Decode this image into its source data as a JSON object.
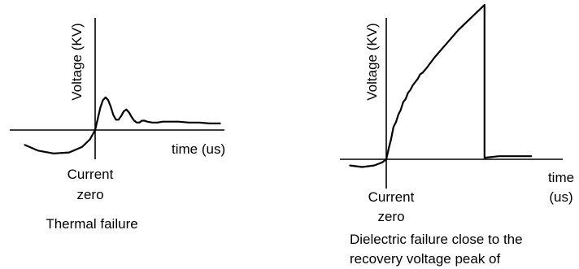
{
  "colors": {
    "background": "#ffffff",
    "ink": "#000000"
  },
  "chart_data": [
    {
      "type": "line",
      "title": "",
      "caption": "Thermal failure",
      "xlabel": "time (us)",
      "ylabel": "Voltage (KV)",
      "origin_label": [
        "Current",
        "zero"
      ],
      "grid": false,
      "legend": "none",
      "xlim": [
        -1.5,
        2.5
      ],
      "ylim": [
        -0.4,
        1.0
      ],
      "series": [
        {
          "x": [
            -1.35,
            -1.1,
            -0.8,
            -0.5,
            -0.25,
            -0.1,
            0,
            0.05,
            0.1,
            0.15,
            0.2,
            0.25,
            0.3,
            0.35,
            0.4,
            0.45,
            0.5,
            0.55,
            0.6,
            0.65,
            0.7,
            0.75,
            0.8,
            0.85,
            0.9,
            0.95,
            1.0,
            1.1,
            1.2,
            1.3,
            1.4,
            1.6,
            1.8,
            2.0,
            2.2,
            2.4
          ],
          "y": [
            -0.16,
            -0.22,
            -0.25,
            -0.24,
            -0.18,
            -0.1,
            0.0,
            0.12,
            0.24,
            0.32,
            0.35,
            0.32,
            0.25,
            0.16,
            0.11,
            0.11,
            0.15,
            0.2,
            0.22,
            0.19,
            0.14,
            0.1,
            0.08,
            0.08,
            0.1,
            0.1,
            0.09,
            0.08,
            0.08,
            0.09,
            0.09,
            0.09,
            0.08,
            0.08,
            0.07,
            0.07
          ]
        }
      ]
    },
    {
      "type": "line",
      "title": "",
      "caption": [
        "Dielectric failure close to the",
        "recovery voltage peak of"
      ],
      "xlabel": [
        "time",
        "(us)"
      ],
      "ylabel": "Voltage (KV)",
      "origin_label": [
        "Current",
        "zero"
      ],
      "grid": false,
      "legend": "none",
      "xlim": [
        -0.5,
        1.9
      ],
      "ylim": [
        -0.1,
        1.0
      ],
      "series": [
        {
          "x": [
            -0.45,
            -0.3,
            -0.15,
            -0.05,
            0,
            0.03,
            0.06,
            0.09,
            0.12,
            0.15,
            0.18,
            0.21,
            0.24,
            0.27,
            0.3,
            0.33,
            0.36,
            0.39,
            0.42,
            0.45,
            0.5,
            0.6,
            0.7,
            0.8,
            0.9,
            1.0,
            1.1,
            1.2,
            1.22,
            1.22,
            1.4,
            1.6,
            1.8
          ],
          "y": [
            -0.04,
            -0.05,
            -0.04,
            -0.02,
            0.0,
            0.07,
            0.13,
            0.21,
            0.24,
            0.29,
            0.32,
            0.37,
            0.39,
            0.43,
            0.45,
            0.48,
            0.5,
            0.52,
            0.55,
            0.56,
            0.59,
            0.66,
            0.72,
            0.78,
            0.84,
            0.89,
            0.94,
            0.99,
            1.0,
            0.01,
            0.02,
            0.02,
            0.02
          ]
        }
      ]
    }
  ]
}
